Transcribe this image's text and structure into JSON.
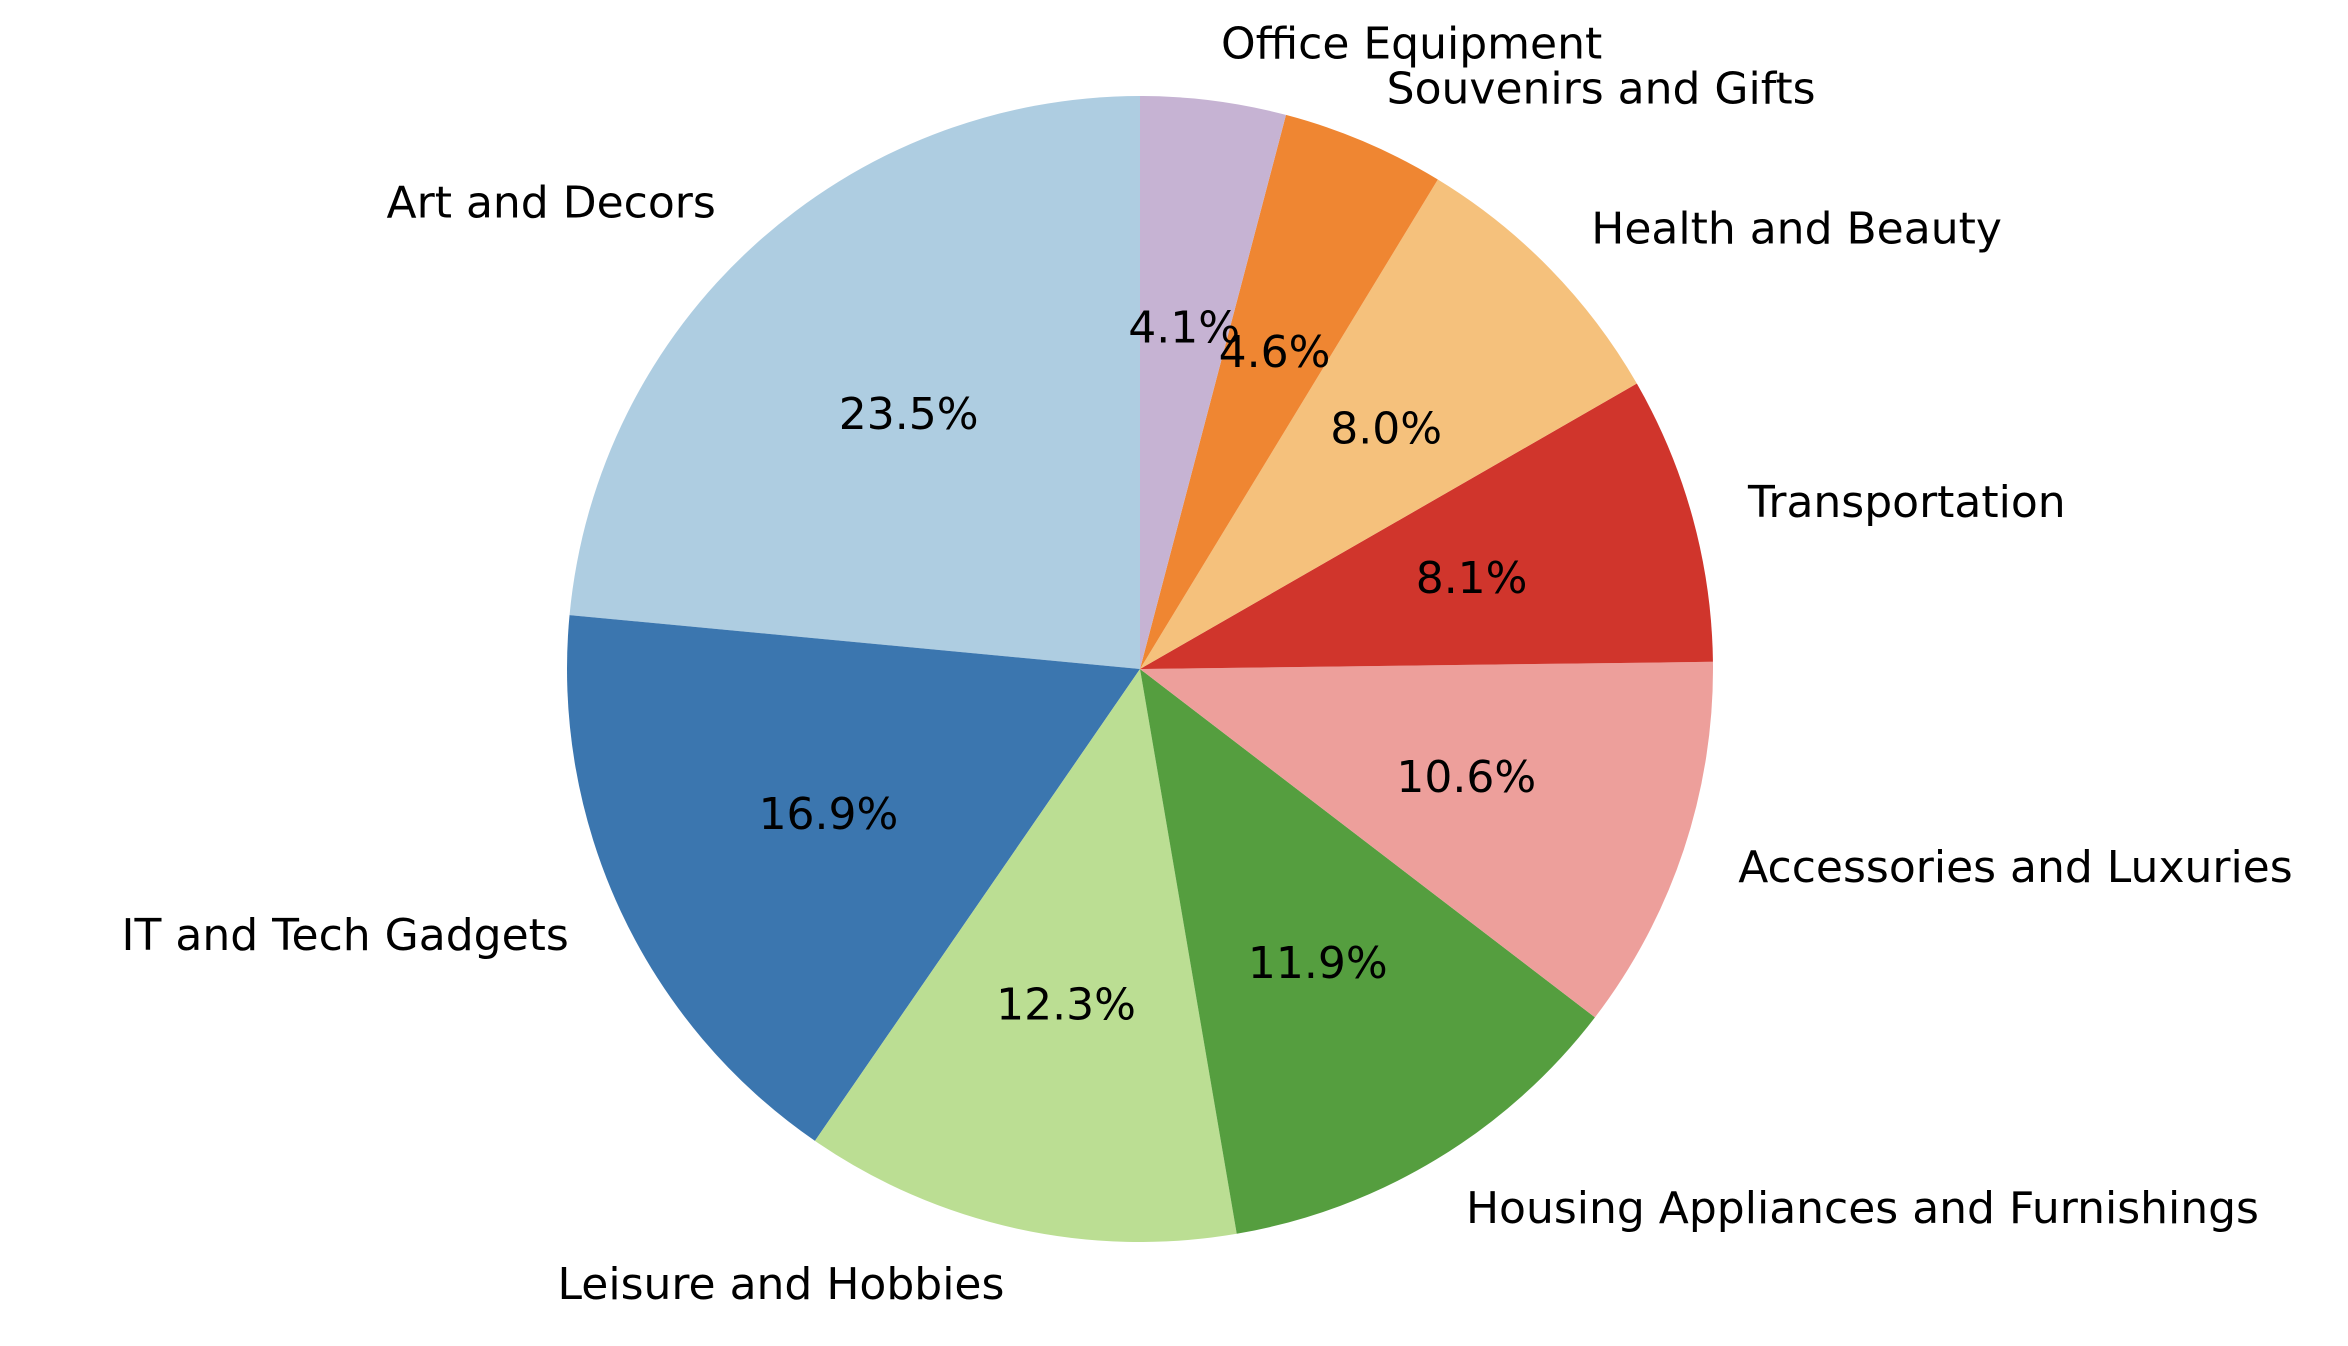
{
  "chart_data": {
    "type": "pie",
    "title": "",
    "start_angle": "top, counterclockwise",
    "slices": [
      {
        "label": "Art and Decors",
        "value": 23.5,
        "pct_label": "23.5%",
        "color": "#aecde1"
      },
      {
        "label": "IT and Tech Gadgets",
        "value": 16.9,
        "pct_label": "16.9%",
        "color": "#3b76af"
      },
      {
        "label": "Leisure and Hobbies",
        "value": 12.3,
        "pct_label": "12.3%",
        "color": "#bbde93"
      },
      {
        "label": "Housing Appliances and Furnishings",
        "value": 11.9,
        "pct_label": "11.9%",
        "color": "#559e3f"
      },
      {
        "label": "Accessories and Luxuries",
        "value": 10.6,
        "pct_label": "10.6%",
        "color": "#ed9f9b"
      },
      {
        "label": "Transportation",
        "value": 8.1,
        "pct_label": "8.1%",
        "color": "#d0352c"
      },
      {
        "label": "Health and Beauty",
        "value": 8.0,
        "pct_label": "8.0%",
        "color": "#f5c17c"
      },
      {
        "label": "Souvenirs and Gifts",
        "value": 4.6,
        "pct_label": "4.6%",
        "color": "#ef8632"
      },
      {
        "label": "Office Equipment",
        "value": 4.1,
        "pct_label": "4.1%",
        "color": "#c6b3d3"
      }
    ]
  }
}
